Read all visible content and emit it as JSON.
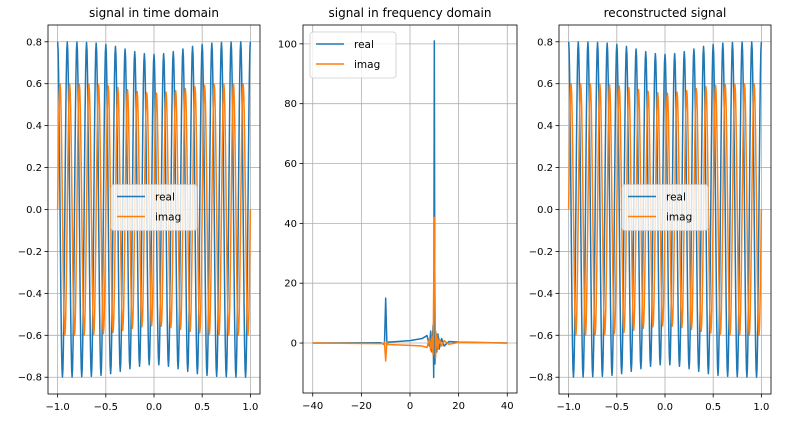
{
  "chart_data": [
    {
      "type": "line",
      "title": "signal in time domain",
      "xlim": [
        -1.1,
        1.1
      ],
      "ylim": [
        -0.88,
        0.88
      ],
      "xticks": [
        -1.0,
        -0.5,
        0.0,
        0.5,
        1.0
      ],
      "xtick_labels": [
        "−1.0",
        "−0.5",
        "0.0",
        "0.5",
        "1.0"
      ],
      "yticks": [
        -0.8,
        -0.6,
        -0.4,
        -0.2,
        0.0,
        0.2,
        0.4,
        0.6,
        0.8
      ],
      "ytick_labels": [
        "−0.8",
        "−0.6",
        "−0.4",
        "−0.2",
        "0.0",
        "0.2",
        "0.4",
        "0.6",
        "0.8"
      ],
      "grid": true,
      "legend": {
        "placement": "center",
        "entries": [
          "real",
          "imag"
        ]
      },
      "signal": {
        "x_range": [
          -1,
          1
        ],
        "samples": 400,
        "frequency": 10,
        "series": [
          {
            "name": "real",
            "kind": "cos",
            "edge_amplitude": 0.8,
            "center_amplitude": 0.74,
            "color": "#1f77b4"
          },
          {
            "name": "imag",
            "kind": "sin",
            "edge_amplitude": 0.6,
            "center_amplitude": 0.555,
            "color": "#ff7f0e"
          }
        ]
      }
    },
    {
      "type": "line",
      "title": "signal in frequency domain",
      "xlim": [
        -44,
        44
      ],
      "ylim": [
        -16.7,
        106.3
      ],
      "xticks": [
        -40,
        -20,
        0,
        20,
        40
      ],
      "xtick_labels": [
        "−40",
        "−20",
        "0",
        "20",
        "40"
      ],
      "yticks": [
        0,
        20,
        40,
        60,
        80,
        100
      ],
      "ytick_labels": [
        "0",
        "20",
        "40",
        "60",
        "80",
        "100"
      ],
      "grid": true,
      "legend": {
        "placement": "upper-left",
        "entries": [
          "real",
          "imag"
        ]
      },
      "series": [
        {
          "name": "real",
          "color": "#1f77b4",
          "x": [
            -40,
            -12,
            -10.5,
            -10,
            -9.5,
            -9,
            -5,
            0,
            5,
            7,
            8,
            8.5,
            9,
            9.5,
            9.75,
            10,
            10.25,
            10.5,
            11,
            11.5,
            12,
            13,
            14,
            16,
            20,
            40
          ],
          "y": [
            0,
            0.1,
            -0.5,
            15,
            -0.5,
            0.3,
            0.5,
            0.8,
            1.5,
            2.5,
            -1,
            4,
            -3,
            6,
            -11.5,
            101,
            -7,
            4,
            -3,
            3,
            -2,
            1.5,
            -1,
            0.5,
            0.3,
            0
          ]
        },
        {
          "name": "imag",
          "color": "#ff7f0e",
          "x": [
            -40,
            -11,
            -10.5,
            -10,
            -9.5,
            -9,
            0,
            5,
            7,
            8,
            8.5,
            9,
            9.5,
            10,
            10.5,
            11,
            11.5,
            12,
            13,
            14,
            16,
            20,
            40
          ],
          "y": [
            0,
            -0.2,
            0.3,
            -6,
            0.3,
            -0.5,
            -0.8,
            -1,
            -1.5,
            1.5,
            -2.5,
            2,
            -4,
            42,
            -5,
            3,
            -2,
            1.5,
            -1,
            0.8,
            -0.4,
            0.2,
            0
          ]
        }
      ]
    },
    {
      "type": "line",
      "title": "reconstructed signal",
      "xlim": [
        -1.1,
        1.1
      ],
      "ylim": [
        -0.88,
        0.88
      ],
      "xticks": [
        -1.0,
        -0.5,
        0.0,
        0.5,
        1.0
      ],
      "xtick_labels": [
        "−1.0",
        "−0.5",
        "0.0",
        "0.5",
        "1.0"
      ],
      "yticks": [
        -0.8,
        -0.6,
        -0.4,
        -0.2,
        0.0,
        0.2,
        0.4,
        0.6,
        0.8
      ],
      "ytick_labels": [
        "−0.8",
        "−0.6",
        "−0.4",
        "−0.2",
        "0.0",
        "0.2",
        "0.4",
        "0.6",
        "0.8"
      ],
      "grid": true,
      "legend": {
        "placement": "center",
        "entries": [
          "real",
          "imag"
        ]
      },
      "signal": {
        "x_range": [
          -1,
          1
        ],
        "samples": 400,
        "frequency": 10,
        "series": [
          {
            "name": "real",
            "kind": "cos",
            "edge_amplitude": 0.8,
            "center_amplitude": 0.74,
            "color": "#1f77b4"
          },
          {
            "name": "imag",
            "kind": "sin",
            "edge_amplitude": 0.6,
            "center_amplitude": 0.555,
            "color": "#ff7f0e"
          }
        ]
      }
    }
  ]
}
